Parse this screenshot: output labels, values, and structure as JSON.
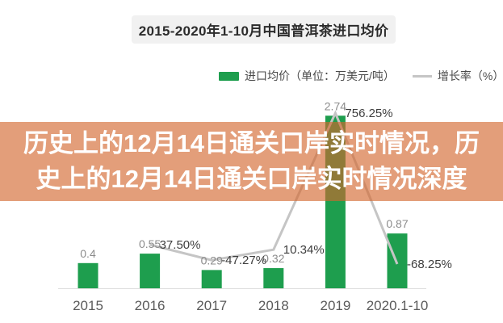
{
  "overlay": {
    "full_text": "历史上的12月14日通关口岸实时情况，历史上的12月14日通关口岸实时情况深度",
    "lines": [
      "历史上的12月14日通关口岸实时情况，历",
      "史上的12月14日通关口岸实时情况深度"
    ],
    "background_rgba": "rgba(211,101,44,0.63)",
    "text_color": "#ffffff"
  },
  "chart_data": {
    "type": "bar",
    "title": "2015-2020年1-10月中国普洱茶进口均价",
    "categories": [
      "2015",
      "2016",
      "2017",
      "2018",
      "2019",
      "2020.1-10"
    ],
    "series": [
      {
        "name": "进口均价（单位：万美元/吨）",
        "type": "bar",
        "color": "#1E9E4E",
        "values": [
          0.4,
          0.55,
          0.29,
          0.32,
          2.74,
          0.87
        ],
        "labels": [
          "0.4",
          "0.55",
          "0.29",
          "0.32",
          "2.74",
          "0.87"
        ]
      },
      {
        "name": "增长率（%）",
        "type": "line",
        "color": "#C5C5C5",
        "values": [
          null,
          37.5,
          -47.27,
          10.34,
          756.25,
          -68.25
        ],
        "labels": [
          null,
          "37.50%",
          "-47.27%",
          "10.34%",
          "756.25%",
          "-68.25%"
        ]
      }
    ],
    "legend_position": "top",
    "grid": false,
    "value_axis_visible": false,
    "bar_value_label_color": "#8C8C8C",
    "growth_label_color": "#3E3E3E",
    "axis_label_color": "#5A5A5A",
    "axis_line_color": "#DDDDDD"
  }
}
